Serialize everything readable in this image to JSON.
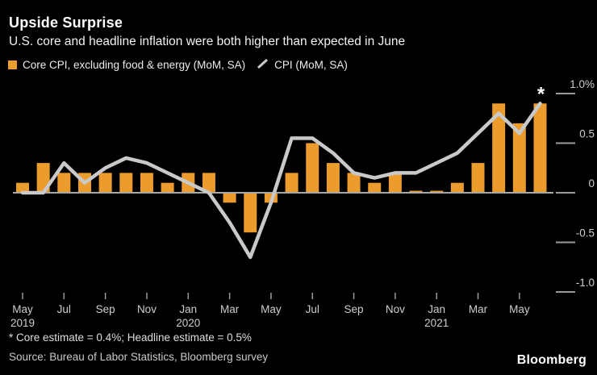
{
  "header": {
    "title": "Upside Surprise",
    "subtitle": "U.S. core and headline inflation were both higher than expected in June"
  },
  "legend": [
    {
      "label": "Core CPI, excluding food & energy (MoM, SA)",
      "swatch": "square",
      "color": "#EC9B2D"
    },
    {
      "label": "CPI (MoM, SA)",
      "swatch": "line",
      "color": "#C9C9C9"
    }
  ],
  "chart_data": {
    "type": "bar",
    "categories": [
      "May 2019",
      "Jun 2019",
      "Jul 2019",
      "Aug 2019",
      "Sep 2019",
      "Oct 2019",
      "Nov 2019",
      "Dec 2019",
      "Jan 2020",
      "Feb 2020",
      "Mar 2020",
      "Apr 2020",
      "May 2020",
      "Jun 2020",
      "Jul 2020",
      "Aug 2020",
      "Sep 2020",
      "Oct 2020",
      "Nov 2020",
      "Dec 2020",
      "Jan 2021",
      "Feb 2021",
      "Mar 2021",
      "Apr 2021",
      "May 2021",
      "Jun 2021"
    ],
    "series": [
      {
        "name": "Core CPI, excluding food & energy (MoM, SA)",
        "type": "bar",
        "color": "#EC9B2D",
        "values": [
          0.1,
          0.3,
          0.2,
          0.2,
          0.2,
          0.2,
          0.2,
          0.1,
          0.2,
          0.2,
          -0.1,
          -0.4,
          -0.1,
          0.2,
          0.5,
          0.3,
          0.2,
          0.1,
          0.2,
          0.02,
          0.02,
          0.1,
          0.3,
          0.9,
          0.7,
          0.9
        ]
      },
      {
        "name": "CPI (MoM, SA)",
        "type": "line",
        "color": "#C9C9C9",
        "values": [
          0.0,
          0.0,
          0.3,
          0.1,
          0.25,
          0.35,
          0.3,
          0.2,
          0.1,
          0.0,
          -0.3,
          -0.65,
          -0.1,
          0.55,
          0.55,
          0.4,
          0.2,
          0.15,
          0.2,
          0.2,
          0.3,
          0.4,
          0.6,
          0.8,
          0.6,
          0.9
        ]
      }
    ],
    "title": "Upside Surprise",
    "xlabel": "",
    "ylabel": "",
    "ylim": [
      -1.0,
      1.0
    ],
    "grid": false,
    "legend_position": "top",
    "y_axis": {
      "ticks": [
        1.0,
        0.5,
        0,
        -0.5,
        -1.0
      ],
      "tick_labels": [
        "1.0%",
        "0.5",
        "0",
        "-0.5",
        "-1.0"
      ]
    },
    "x_axis": {
      "tick_indices": [
        0,
        2,
        4,
        6,
        8,
        10,
        12,
        14,
        16,
        18,
        20,
        22,
        24
      ],
      "tick_labels": [
        "May",
        "Jul",
        "Sep",
        "Nov",
        "Jan",
        "Mar",
        "May",
        "Jul",
        "Sep",
        "Nov",
        "Jan",
        "Mar",
        "May"
      ],
      "year_labels": [
        {
          "index": 0,
          "label": "2019"
        },
        {
          "index": 8,
          "label": "2020"
        },
        {
          "index": 20,
          "label": "2021"
        }
      ]
    },
    "annotation": {
      "index": 25,
      "marker": "*"
    }
  },
  "footer": {
    "footnote": "* Core estimate = 0.4%; Headline estimate = 0.5%",
    "source": "Source: Bureau of Labor Statistics, Bloomberg survey",
    "brand": "Bloomberg"
  },
  "colors": {
    "background": "#000000",
    "bar": "#EC9B2D",
    "line": "#C9C9C9",
    "zero_line": "#A8A8A8",
    "tick": "#9B9B9B",
    "axis_text": "#CDCDCD",
    "title_text": "#FFFFFF"
  }
}
